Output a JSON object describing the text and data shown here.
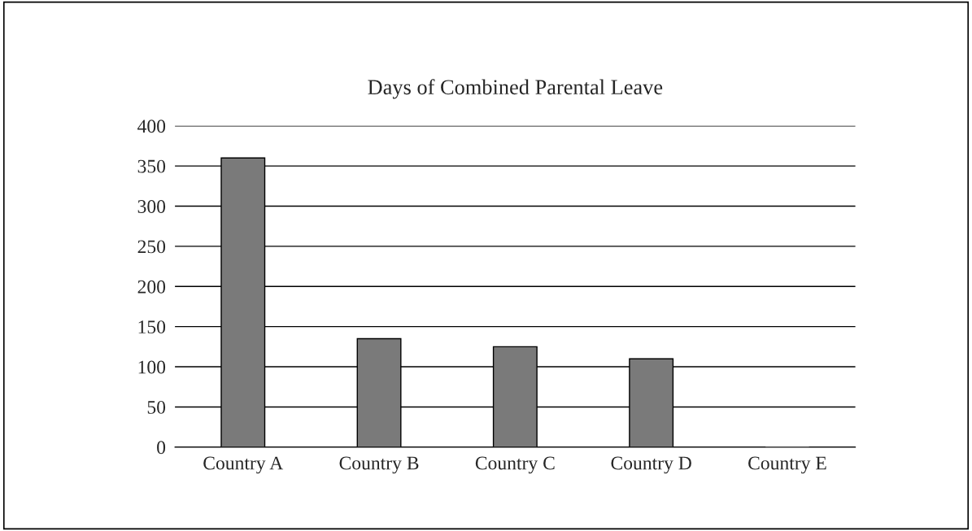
{
  "chart_data": {
    "type": "bar",
    "title": "Days of Combined Parental Leave",
    "categories": [
      "Country A",
      "Country B",
      "Country C",
      "Country D",
      "Country E"
    ],
    "values": [
      360,
      135,
      125,
      110,
      0
    ],
    "color": "#7a7a7a",
    "ylim": [
      0,
      400
    ],
    "yticks": [
      0,
      50,
      100,
      150,
      200,
      250,
      300,
      350,
      400
    ],
    "grid": "y"
  }
}
